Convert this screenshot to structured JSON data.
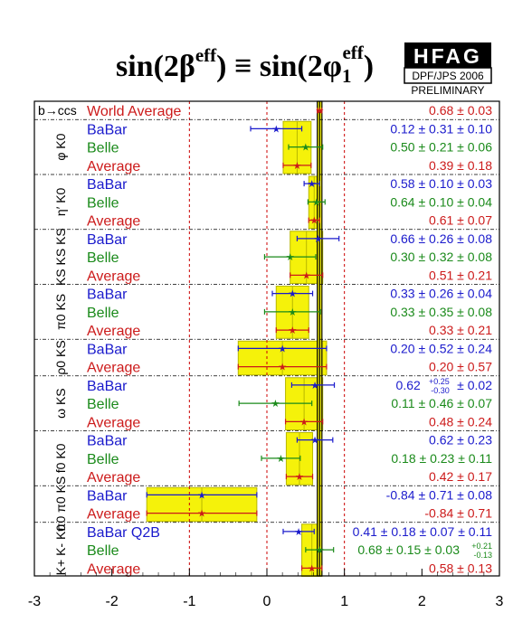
{
  "title": {
    "left_main": "sin(2β",
    "left_sup": "eff",
    "middle": ") ≡ sin(2φ",
    "right_sub": "1",
    "right_sup": "eff",
    "end": ")"
  },
  "logo": {
    "name": "HFAG",
    "conference": "DPF/JPS 2006",
    "status": "PRELIMINARY"
  },
  "colors": {
    "babar": "#1a1acc",
    "belle": "#1a8a1a",
    "average": "#cc1a1a",
    "band": "#f5f20a",
    "band_edge": "#b8b800",
    "world_line": "#000000",
    "grid_dotted": "#cc0000"
  },
  "chart_data": {
    "type": "scatter",
    "orientation": "horizontal error bars",
    "title": "sin(2β^eff) ≡ sin(2φ1^eff)",
    "xlim": [
      -3,
      3
    ],
    "x_ticks": [
      "-3",
      "-2",
      "-1",
      "0",
      "1",
      "2",
      "3"
    ],
    "world_average": {
      "label": "World Average",
      "value": 0.68,
      "error": 0.03,
      "text": "0.68 ± 0.03",
      "group": "b→ccs"
    },
    "groups": [
      {
        "name": "φ K0",
        "rows": [
          {
            "label": "BaBar",
            "exp": "babar",
            "value": 0.12,
            "err_lo": 0.33,
            "err_hi": 0.33,
            "text": "0.12 ± 0.31 ± 0.10"
          },
          {
            "label": "Belle",
            "exp": "belle",
            "value": 0.5,
            "err_lo": 0.22,
            "err_hi": 0.22,
            "text": "0.50 ± 0.21 ± 0.06"
          },
          {
            "label": "Average",
            "exp": "average",
            "value": 0.39,
            "err_lo": 0.18,
            "err_hi": 0.18,
            "text": "0.39 ± 0.18"
          }
        ]
      },
      {
        "name": "η′ K0",
        "rows": [
          {
            "label": "BaBar",
            "exp": "babar",
            "value": 0.58,
            "err_lo": 0.1,
            "err_hi": 0.1,
            "text": "0.58 ± 0.10 ± 0.03"
          },
          {
            "label": "Belle",
            "exp": "belle",
            "value": 0.64,
            "err_lo": 0.11,
            "err_hi": 0.11,
            "text": "0.64 ± 0.10 ± 0.04"
          },
          {
            "label": "Average",
            "exp": "average",
            "value": 0.61,
            "err_lo": 0.07,
            "err_hi": 0.07,
            "text": "0.61 ± 0.07"
          }
        ]
      },
      {
        "name": "KS KS KS",
        "rows": [
          {
            "label": "BaBar",
            "exp": "babar",
            "value": 0.66,
            "err_lo": 0.27,
            "err_hi": 0.27,
            "text": "0.66 ± 0.26 ± 0.08"
          },
          {
            "label": "Belle",
            "exp": "belle",
            "value": 0.3,
            "err_lo": 0.33,
            "err_hi": 0.33,
            "text": "0.30 ± 0.32 ± 0.08"
          },
          {
            "label": "Average",
            "exp": "average",
            "value": 0.51,
            "err_lo": 0.21,
            "err_hi": 0.21,
            "text": "0.51 ± 0.21"
          }
        ]
      },
      {
        "name": "π0 KS",
        "rows": [
          {
            "label": "BaBar",
            "exp": "babar",
            "value": 0.33,
            "err_lo": 0.26,
            "err_hi": 0.26,
            "text": "0.33 ± 0.26 ± 0.04"
          },
          {
            "label": "Belle",
            "exp": "belle",
            "value": 0.33,
            "err_lo": 0.36,
            "err_hi": 0.36,
            "text": "0.33 ± 0.35 ± 0.08"
          },
          {
            "label": "Average",
            "exp": "average",
            "value": 0.33,
            "err_lo": 0.21,
            "err_hi": 0.21,
            "text": "0.33 ± 0.21"
          }
        ]
      },
      {
        "name": "ρ0 KS",
        "rows": [
          {
            "label": "BaBar",
            "exp": "babar",
            "value": 0.2,
            "err_lo": 0.57,
            "err_hi": 0.57,
            "text": "0.20 ± 0.52 ± 0.24"
          },
          {
            "label": "Average",
            "exp": "average",
            "value": 0.2,
            "err_lo": 0.57,
            "err_hi": 0.57,
            "text": "0.20 ± 0.57"
          }
        ]
      },
      {
        "name": "ω KS",
        "rows": [
          {
            "label": "BaBar",
            "exp": "babar",
            "value": 0.62,
            "err_lo": 0.3,
            "err_hi": 0.25,
            "text": "0.62",
            "text_sup": "+0.25",
            "text_sub": "-0.30",
            "text_tail": "± 0.02"
          },
          {
            "label": "Belle",
            "exp": "belle",
            "value": 0.11,
            "err_lo": 0.47,
            "err_hi": 0.47,
            "text": "0.11 ± 0.46 ± 0.07"
          },
          {
            "label": "Average",
            "exp": "average",
            "value": 0.48,
            "err_lo": 0.24,
            "err_hi": 0.24,
            "text": "0.48 ± 0.24"
          }
        ]
      },
      {
        "name": "f0 K0",
        "rows": [
          {
            "label": "BaBar",
            "exp": "babar",
            "value": 0.62,
            "err_lo": 0.23,
            "err_hi": 0.23,
            "text": "0.62 ± 0.23"
          },
          {
            "label": "Belle",
            "exp": "belle",
            "value": 0.18,
            "err_lo": 0.25,
            "err_hi": 0.25,
            "text": "0.18 ± 0.23 ± 0.11"
          },
          {
            "label": "Average",
            "exp": "average",
            "value": 0.42,
            "err_lo": 0.17,
            "err_hi": 0.17,
            "text": "0.42 ± 0.17"
          }
        ]
      },
      {
        "name": "π0 π0 KS",
        "rows": [
          {
            "label": "BaBar",
            "exp": "babar",
            "value": -0.84,
            "err_lo": 0.71,
            "err_hi": 0.71,
            "text": "-0.84 ± 0.71 ± 0.08"
          },
          {
            "label": "Average",
            "exp": "average",
            "value": -0.84,
            "err_lo": 0.71,
            "err_hi": 0.71,
            "text": "-0.84 ± 0.71"
          }
        ]
      },
      {
        "name": "K+ K- K0",
        "rows": [
          {
            "label": "BaBar Q2B",
            "exp": "babar",
            "value": 0.41,
            "err_lo": 0.2,
            "err_hi": 0.2,
            "text": "0.41 ± 0.18 ± 0.07 ± 0.11"
          },
          {
            "label": "Belle",
            "exp": "belle",
            "value": 0.68,
            "err_lo": 0.18,
            "err_hi": 0.18,
            "text": "0.68 ± 0.15 ± 0.03",
            "text_sup": "+0.21",
            "text_sub": "-0.13"
          },
          {
            "label": "Average",
            "exp": "average",
            "value": 0.58,
            "err_lo": 0.13,
            "err_hi": 0.13,
            "text": "0.58 ± 0.13"
          }
        ]
      }
    ]
  }
}
